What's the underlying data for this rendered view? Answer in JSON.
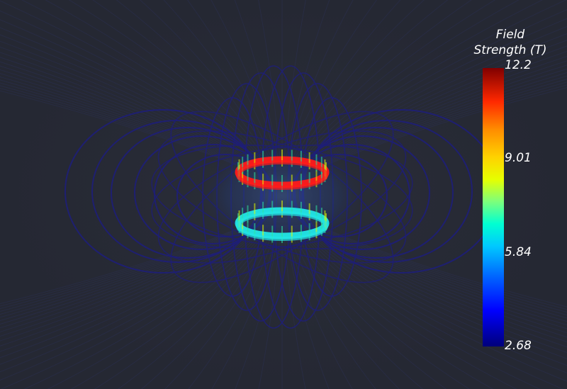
{
  "colorbar": {
    "title": "Field\nStrength (T)",
    "max_label": "12.2",
    "tick_2_label": "9.01",
    "tick_1_label": "5.84",
    "min_label": "2.68",
    "colors": [
      "#00007a",
      "#0000ff",
      "#0064ff",
      "#00c8ff",
      "#00ffd2",
      "#7cff7c",
      "#e6ff00",
      "#ffd200",
      "#ff8c00",
      "#ff2800",
      "#800000"
    ]
  },
  "scene": {
    "background": "#252833",
    "field_line_color": "#1e1e78",
    "upper_coil_color": "#ff1a1a",
    "lower_coil_color": "#22e6e6"
  }
}
